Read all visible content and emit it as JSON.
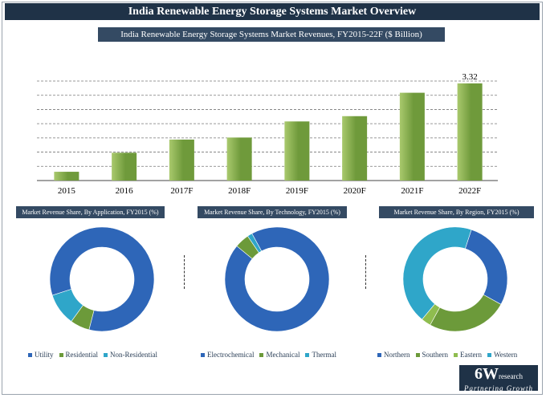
{
  "main_title": "India Renewable Energy Storage Systems Market Overview",
  "chart_data": [
    {
      "type": "bar",
      "title": "India Renewable Energy Storage Systems Market Revenues, FY2015-22F ($ Billion)",
      "categories": [
        "2015",
        "2016",
        "2017F",
        "2018F",
        "2019F",
        "2020F",
        "2021F",
        "2022F"
      ],
      "values": [
        0.3,
        0.95,
        1.4,
        1.47,
        2.02,
        2.2,
        3.0,
        3.32
      ],
      "data_labels": [
        "",
        "",
        "",
        "",
        "",
        "",
        "",
        "3.32"
      ],
      "ylim": [
        0,
        3.4
      ],
      "grid": true,
      "colors": {
        "bar": "#6f9a3b",
        "bar_light": "#a9c96d"
      }
    },
    {
      "type": "pie",
      "title": "Market Revenue Share, By Application, FY2015 (%)",
      "labels": [
        "Utility",
        "Residential",
        "Non-Residential"
      ],
      "values": [
        84,
        6,
        10
      ],
      "colors": [
        "#2e66b8",
        "#6c9a3a",
        "#2fa6c9"
      ],
      "legend": "bottom"
    },
    {
      "type": "pie",
      "title": "Market Revenue Share, By Technology, FY2015 (%)",
      "labels": [
        "Electrochemical",
        "Mechanical",
        "Thermal"
      ],
      "values": [
        94,
        4.5,
        1.5
      ],
      "colors": [
        "#2e66b8",
        "#6c9a3a",
        "#2fa6c9"
      ],
      "legend": "bottom"
    },
    {
      "type": "pie",
      "title": "Market Revenue Share, By Region, FY2015 (%)",
      "labels": [
        "Northern",
        "Southern",
        "Eastern",
        "Western"
      ],
      "values": [
        28,
        25,
        3,
        44
      ],
      "colors": [
        "#2e66b8",
        "#6c9a3a",
        "#8fbd4f",
        "#2fa6c9"
      ],
      "legend": "bottom"
    }
  ],
  "logo": {
    "main": "6W",
    "suffix": "research",
    "tagline": "Partnering Growth"
  }
}
